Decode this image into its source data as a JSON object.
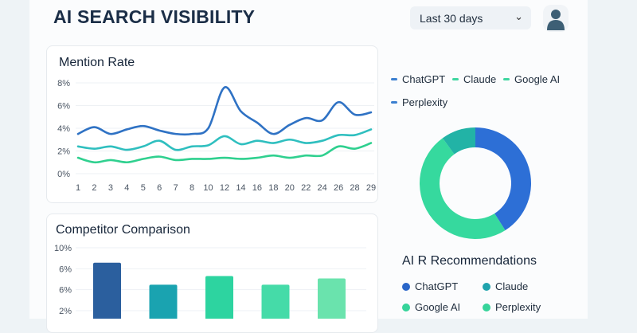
{
  "header": {
    "title": "AI SEARCH VISIBILITY",
    "date_range": "Last 30 days",
    "avatar_icon": "user-icon"
  },
  "colors": {
    "chatgpt": "#2f6fcf",
    "claude": "#2fbcbc",
    "google_ai": "#34d399",
    "perplexity": "#2f6fcf"
  },
  "legend_top": [
    {
      "label": "ChatGPT",
      "color": "#3b7fd0"
    },
    {
      "label": "Claude",
      "color": "#3ed6a0"
    },
    {
      "label": "Google AI",
      "color": "#3ed6a0"
    },
    {
      "label": "Perplexity",
      "color": "#3b7fd0"
    }
  ],
  "recommendations": {
    "title": "AI R Recommendations",
    "items": [
      {
        "label": "ChatGPT",
        "color": "#2a66c9"
      },
      {
        "label": "Claude",
        "color": "#1fa3ad"
      },
      {
        "label": "Google AI",
        "color": "#36d49a"
      },
      {
        "label": "Perplexity",
        "color": "#36d49a"
      }
    ]
  },
  "chart_data": [
    {
      "type": "line",
      "title": "Mention Rate",
      "x": [
        "1",
        "2",
        "3",
        "4",
        "5",
        "6",
        "7",
        "8",
        "10",
        "12",
        "14",
        "16",
        "18",
        "20",
        "22",
        "24",
        "26",
        "28",
        "29"
      ],
      "yticks": [
        "0%",
        "2%",
        "4%",
        "6%",
        "8%"
      ],
      "ylim": [
        0,
        8
      ],
      "grid": true,
      "series": [
        {
          "color": "#2f72c4",
          "values": [
            3.5,
            4.1,
            3.5,
            3.9,
            4.2,
            3.8,
            3.5,
            3.5,
            4.0,
            7.6,
            5.5,
            4.5,
            3.5,
            4.3,
            4.9,
            4.7,
            6.3,
            5.2,
            5.4
          ]
        },
        {
          "color": "#2fbfbf",
          "values": [
            2.4,
            2.2,
            2.4,
            2.1,
            2.4,
            2.9,
            2.1,
            2.4,
            2.5,
            3.3,
            2.6,
            2.9,
            2.7,
            3.0,
            2.7,
            2.9,
            3.4,
            3.4,
            3.9
          ]
        },
        {
          "color": "#2fd08f",
          "values": [
            1.4,
            1.0,
            1.2,
            1.0,
            1.3,
            1.5,
            1.2,
            1.3,
            1.3,
            1.4,
            1.3,
            1.4,
            1.6,
            1.4,
            1.6,
            1.6,
            2.4,
            2.2,
            2.7
          ]
        }
      ]
    },
    {
      "type": "pie",
      "donut": true,
      "slices": [
        {
          "value": 41,
          "color": "#2d6fd6"
        },
        {
          "value": 49,
          "color": "#36d99e"
        },
        {
          "value": 10,
          "color": "#22b3a6"
        }
      ]
    },
    {
      "type": "bar",
      "title": "Competitor Comparison",
      "yticks": [
        "10%",
        "6%",
        "6%",
        "2%"
      ],
      "ylim": [
        2,
        10
      ],
      "grid": true,
      "values": [
        8.1,
        5.3,
        6.4,
        5.3,
        6.1
      ],
      "colors": [
        "#2b5f9e",
        "#1aa3b0",
        "#2dd4a0",
        "#45dba8",
        "#6ae3ad"
      ]
    }
  ]
}
